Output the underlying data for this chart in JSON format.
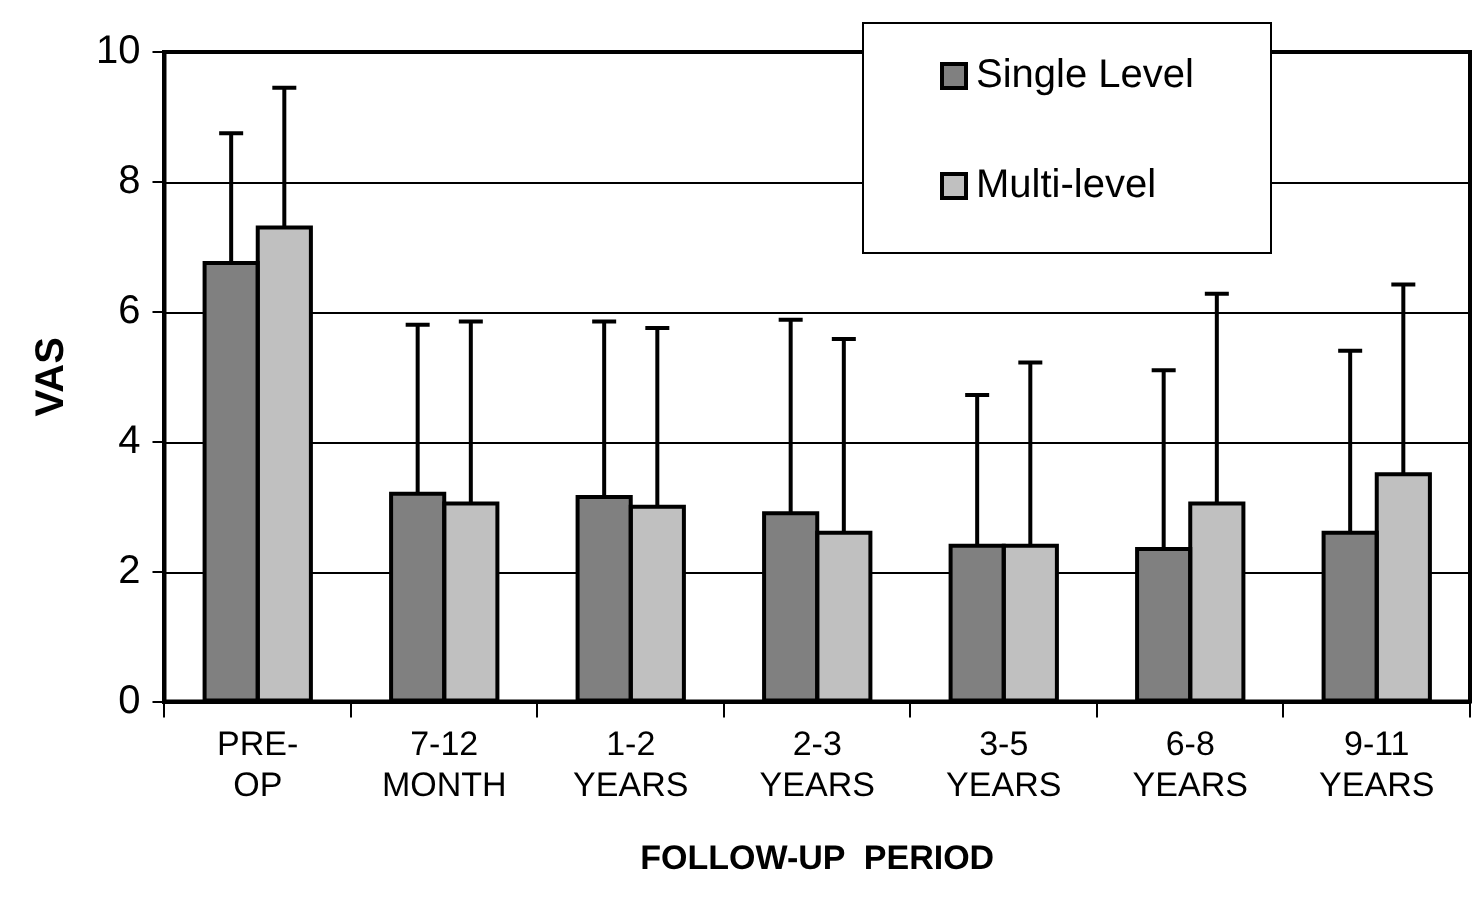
{
  "chart_data": {
    "type": "bar",
    "xlabel": "FOLLOW-UP  PERIOD",
    "ylabel": "VAS",
    "categories": [
      "PRE-\nOP",
      "7-12\nMONTH",
      "1-2\nYEARS",
      "2-3\nYEARS",
      "3-5\nYEARS",
      "6-8\nYEARS",
      "9-11\nYEARS"
    ],
    "series": [
      {
        "name": "Single Level",
        "color": "#808080",
        "values": [
          6.75,
          3.2,
          3.15,
          2.9,
          2.4,
          2.35,
          2.6
        ],
        "errors": [
          [
            6.75,
            8.75
          ],
          [
            3.2,
            5.8
          ],
          [
            3.15,
            5.85
          ],
          [
            2.9,
            5.88
          ],
          [
            2.4,
            4.72
          ],
          [
            2.35,
            5.1
          ],
          [
            2.6,
            5.4
          ]
        ]
      },
      {
        "name": "Multi-level",
        "color": "#c0c0c0",
        "values": [
          7.3,
          3.05,
          3.0,
          2.6,
          2.4,
          3.05,
          3.5
        ],
        "errors": [
          [
            7.3,
            9.45
          ],
          [
            3.05,
            5.85
          ],
          [
            3.0,
            5.75
          ],
          [
            2.6,
            5.58
          ],
          [
            2.4,
            5.22
          ],
          [
            3.05,
            6.28
          ],
          [
            3.5,
            6.42
          ]
        ]
      }
    ],
    "ylim": [
      0,
      10
    ],
    "yticks": [
      0,
      2,
      4,
      6,
      8,
      10
    ],
    "grid": "y",
    "legend": "top right"
  }
}
